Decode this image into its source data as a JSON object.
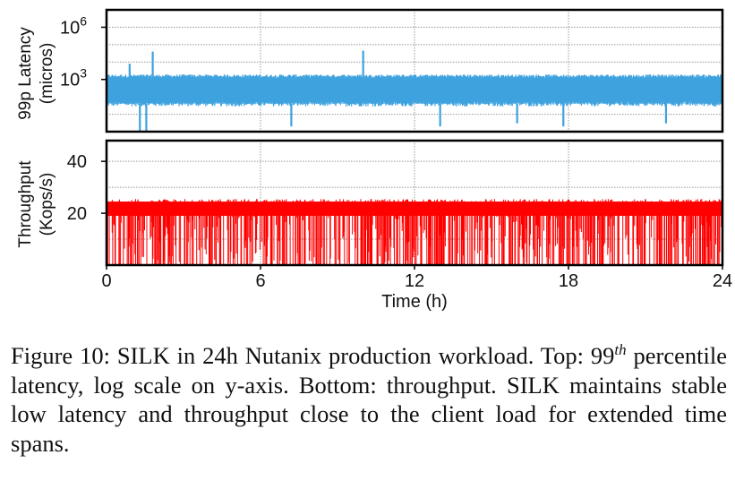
{
  "chart_data": [
    {
      "type": "line",
      "ylabel": [
        "99p Latency",
        "(micros)"
      ],
      "yscale": "log",
      "ylim": [
        1,
        10000000
      ],
      "yticks": [
        {
          "base": "10",
          "exp": "6",
          "value": 1000000
        },
        {
          "base": "10",
          "exp": "3",
          "value": 1000
        }
      ],
      "xlim": [
        0,
        24
      ],
      "grid": true,
      "series": [
        {
          "color": "#3ea2de",
          "baseline_band": [
            40,
            1500
          ],
          "spikes_up": [
            [
              1.8,
              40000
            ],
            [
              10.0,
              45000
            ],
            [
              0.9,
              8000
            ]
          ],
          "spikes_down": [
            [
              1.3,
              1
            ],
            [
              1.55,
              1
            ],
            [
              7.2,
              2
            ],
            [
              13.0,
              2
            ],
            [
              16.0,
              3
            ],
            [
              17.8,
              2
            ],
            [
              21.8,
              3
            ]
          ]
        }
      ]
    },
    {
      "type": "line",
      "ylabel": [
        "Throughput",
        "(Kops/s)"
      ],
      "ylim": [
        0,
        48
      ],
      "yticks": [
        20,
        40
      ],
      "xlim": [
        0,
        24
      ],
      "xticks": [
        0,
        6,
        12,
        18,
        24
      ],
      "xlabel": "Time (h)",
      "grid": true,
      "series": [
        {
          "color": "#ff0000",
          "typical_value": 22,
          "band": [
            19,
            24.5
          ]
        }
      ]
    }
  ],
  "caption": {
    "label": "Figure 10:",
    "text_1": " SILK in 24h Nutanix production workload. Top: 99",
    "sup": "th",
    "text_2": " percentile latency, log scale on y-axis. Bottom: throughput. SILK maintains stable low latency and throughput close to the client load for extended time spans."
  }
}
